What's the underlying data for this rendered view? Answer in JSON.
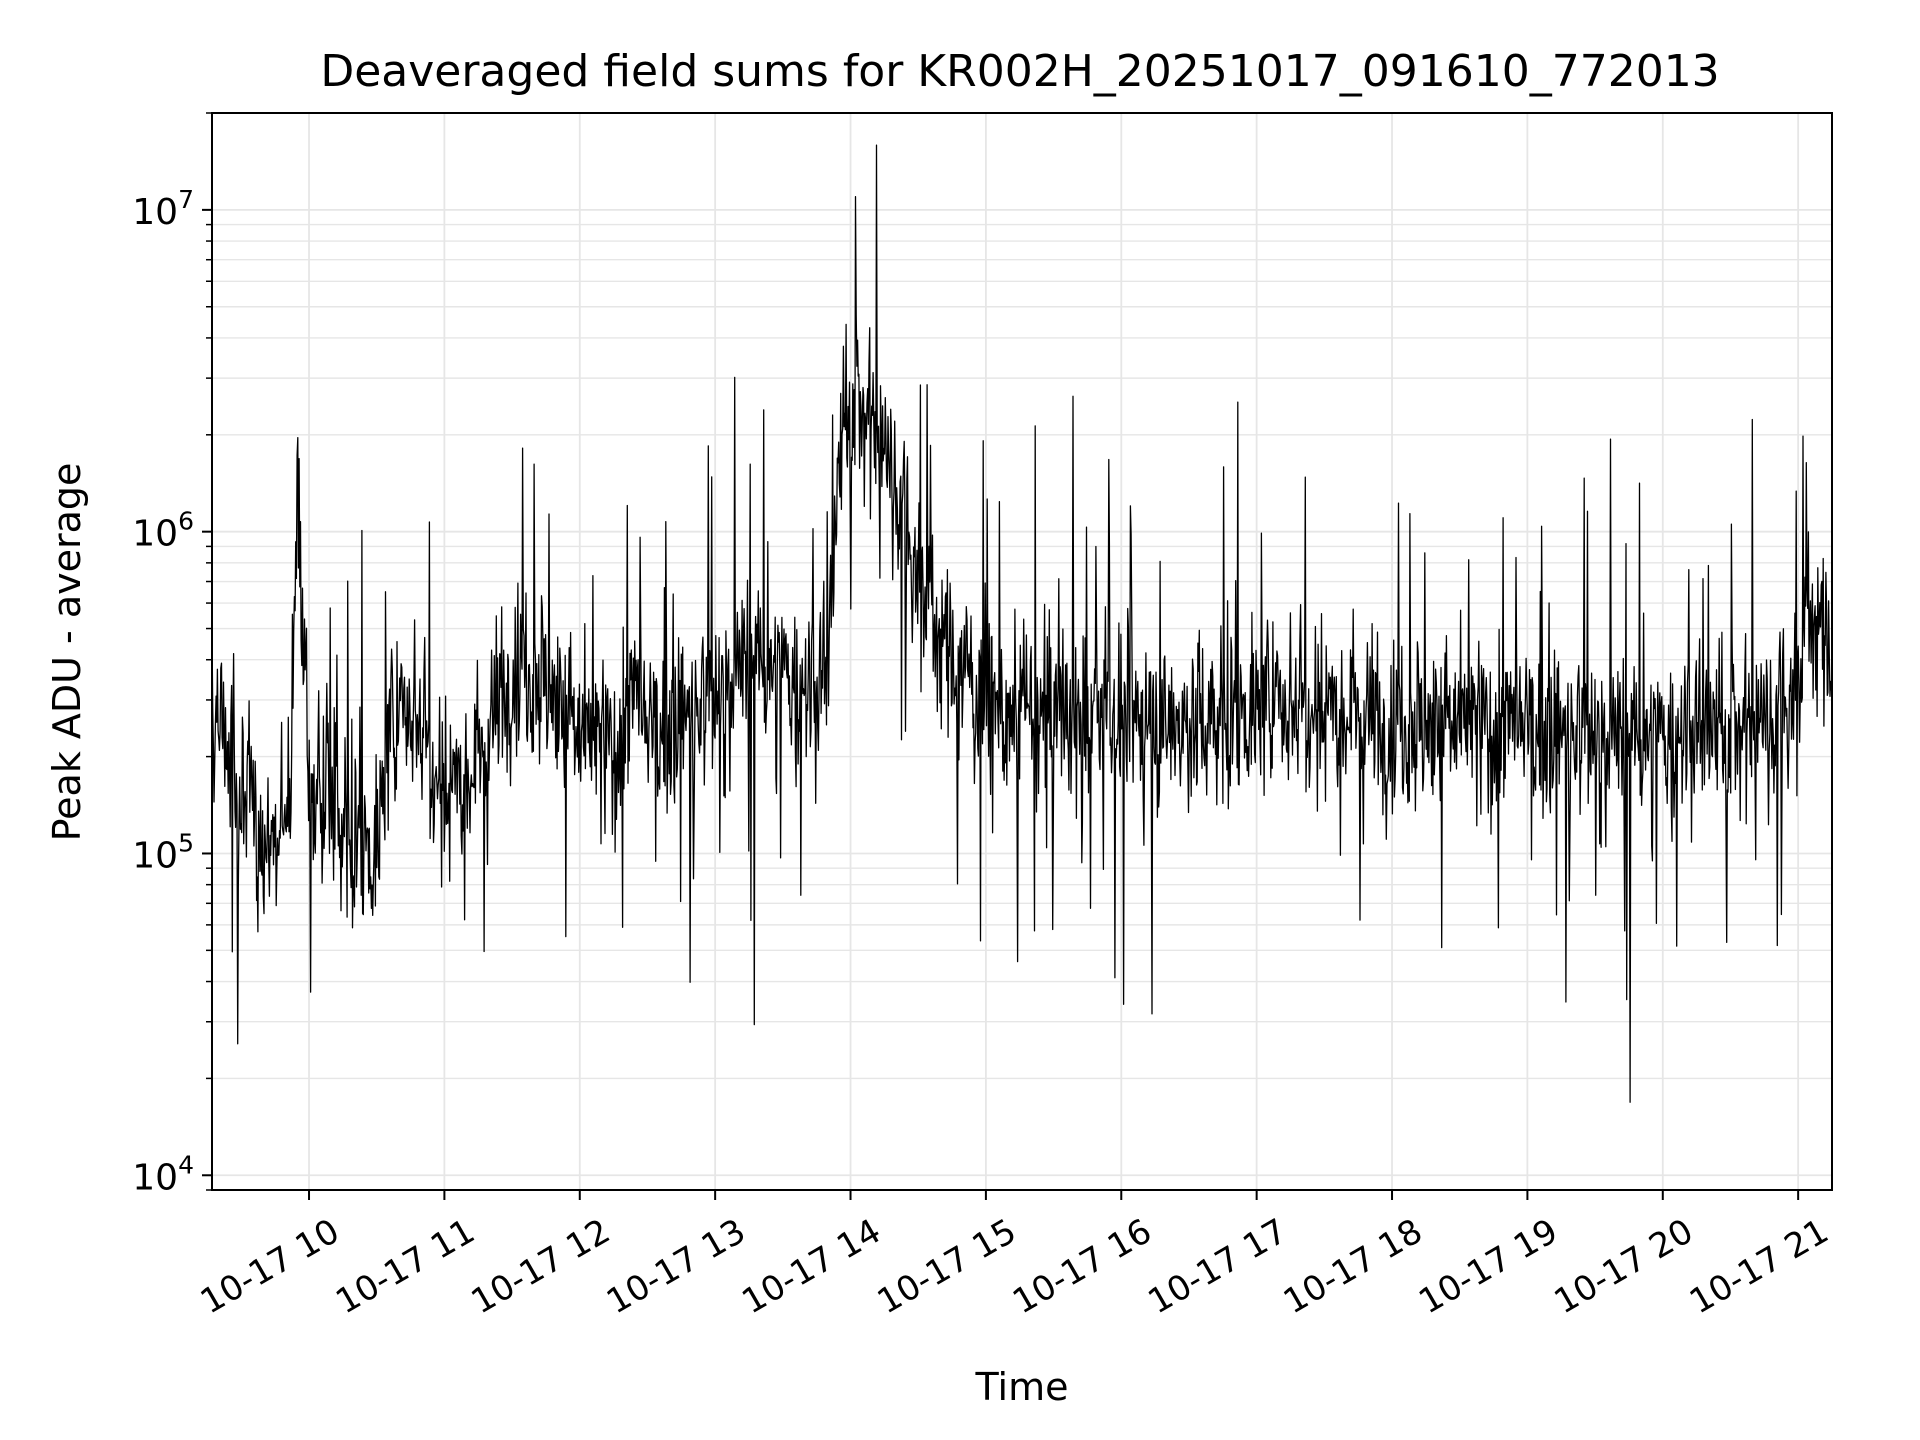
{
  "chart_data": {
    "type": "line",
    "title": "Deaveraged field sums for KR002H_20251017_091610_772013",
    "xlabel": "Time",
    "ylabel": "Peak ADU - average",
    "x_tick_labels": [
      "10-17 10",
      "10-17 11",
      "10-17 12",
      "10-17 13",
      "10-17 14",
      "10-17 15",
      "10-17 16",
      "10-17 17",
      "10-17 18",
      "10-17 19",
      "10-17 20",
      "10-17 21"
    ],
    "x_tick_values": [
      "2025-10-17 10:00",
      "2025-10-17 11:00",
      "2025-10-17 12:00",
      "2025-10-17 13:00",
      "2025-10-17 14:00",
      "2025-10-17 15:00",
      "2025-10-17 16:00",
      "2025-10-17 17:00",
      "2025-10-17 18:00",
      "2025-10-17 19:00",
      "2025-10-17 20:00",
      "2025-10-17 21:00"
    ],
    "xlim": [
      "2025-10-17 09:17",
      "2025-10-17 21:15"
    ],
    "y_scale": "log",
    "ylim": [
      9000,
      20000000
    ],
    "y_tick_values": [
      10000,
      100000,
      1000000,
      10000000
    ],
    "y_tick_labels": [
      {
        "base": "10",
        "exp": "4"
      },
      {
        "base": "10",
        "exp": "5"
      },
      {
        "base": "10",
        "exp": "6"
      },
      {
        "base": "10",
        "exp": "7"
      }
    ],
    "grid": "major and minor",
    "line_color": "#000000",
    "series": [
      {
        "x": [
          "2025-10-17 09:17",
          "2025-10-17 09:30",
          "2025-10-17 09:45",
          "2025-10-17 09:52",
          "2025-10-17 09:55",
          "2025-10-17 10:00",
          "2025-10-17 10:15",
          "2025-10-17 10:30",
          "2025-10-17 10:35",
          "2025-10-17 10:45",
          "2025-10-17 11:00",
          "2025-10-17 11:15",
          "2025-10-17 11:30",
          "2025-10-17 11:45",
          "2025-10-17 12:00",
          "2025-10-17 12:15",
          "2025-10-17 12:25",
          "2025-10-17 12:30",
          "2025-10-17 12:45",
          "2025-10-17 13:00",
          "2025-10-17 13:15",
          "2025-10-17 13:30",
          "2025-10-17 13:45",
          "2025-10-17 13:50",
          "2025-10-17 13:55",
          "2025-10-17 14:00",
          "2025-10-17 14:10",
          "2025-10-17 14:20",
          "2025-10-17 14:30",
          "2025-10-17 14:45",
          "2025-10-17 15:00",
          "2025-10-17 15:15",
          "2025-10-17 15:30",
          "2025-10-17 16:00",
          "2025-10-17 16:30",
          "2025-10-17 17:00",
          "2025-10-17 17:30",
          "2025-10-17 18:00",
          "2025-10-17 18:30",
          "2025-10-17 19:00",
          "2025-10-17 19:30",
          "2025-10-17 20:00",
          "2025-10-17 20:30",
          "2025-10-17 20:50",
          "2025-10-17 21:00",
          "2025-10-17 21:05",
          "2025-10-17 21:15"
        ],
        "y": [
          300000,
          150000,
          90000,
          180000,
          1400000,
          180000,
          120000,
          100000,
          220000,
          300000,
          170000,
          200000,
          400000,
          350000,
          230000,
          210000,
          310000,
          230000,
          260000,
          300000,
          400000,
          350000,
          300000,
          380000,
          1600000,
          2600000,
          2200000,
          1500000,
          700000,
          400000,
          300000,
          250000,
          270000,
          260000,
          250000,
          280000,
          310000,
          260000,
          250000,
          240000,
          230000,
          220000,
          240000,
          280000,
          320000,
          600000,
          400000
        ]
      }
    ]
  }
}
